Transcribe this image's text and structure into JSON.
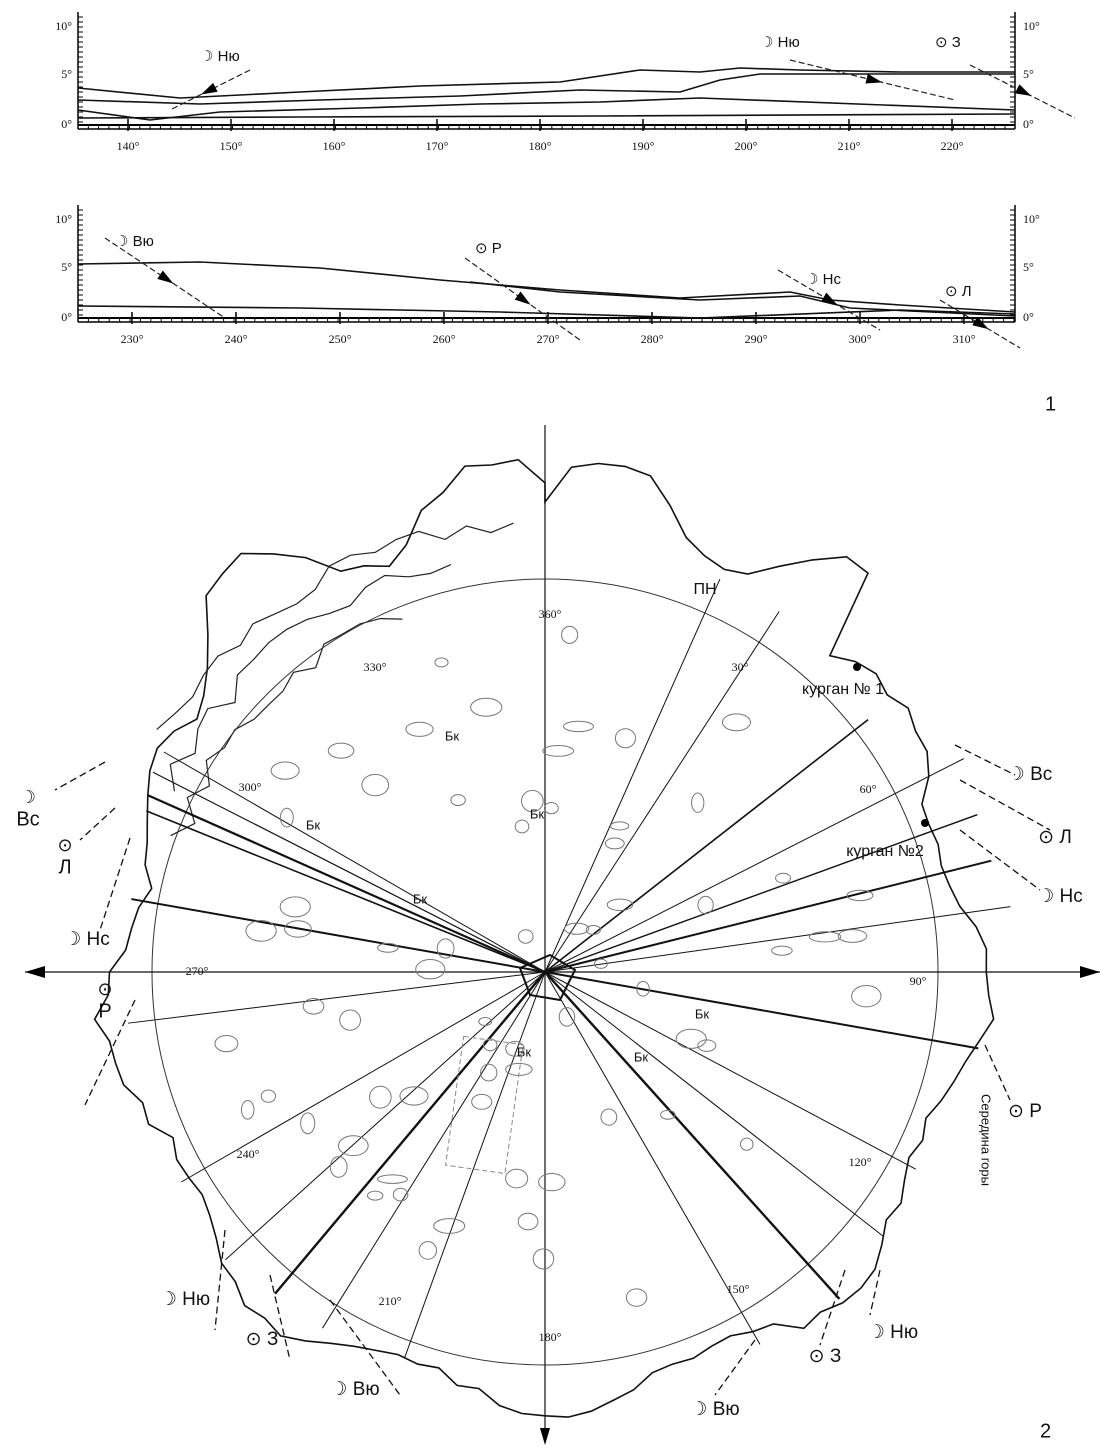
{
  "panel_labels": [
    "1",
    "2"
  ],
  "profiles": [
    {
      "y_left": [
        "10°",
        "5°",
        "0°"
      ],
      "y_right": [
        "10°",
        "5°",
        "0°"
      ],
      "x_labels": [
        "140°",
        "150°",
        "160°",
        "170°",
        "180°",
        "190°",
        "200°",
        "210°",
        "220°"
      ],
      "markers": [
        {
          "symbol": "☽",
          "name": "Ню"
        },
        {
          "symbol": "☽",
          "name": "Ню"
        },
        {
          "symbol": "⊙",
          "name": "З"
        }
      ]
    },
    {
      "y_left": [
        "10°",
        "5°",
        "0°"
      ],
      "y_right": [
        "10°",
        "5°",
        "0°"
      ],
      "x_labels": [
        "230°",
        "240°",
        "250°",
        "260°",
        "270°",
        "280°",
        "290°",
        "300°",
        "310°"
      ],
      "markers": [
        {
          "symbol": "☽",
          "name": "Вю"
        },
        {
          "symbol": "⊙",
          "name": "Р"
        },
        {
          "symbol": "☽",
          "name": "Нс"
        },
        {
          "symbol": "⊙",
          "name": "Л"
        }
      ]
    }
  ],
  "plan": {
    "azimuth_labels": [
      "360°",
      "30°",
      "60°",
      "90°",
      "120°",
      "150°",
      "180°",
      "210°",
      "240°",
      "270°",
      "300°",
      "330°"
    ],
    "labels": [
      "ПН",
      "курган № 1",
      "курган №2",
      "Середина горы"
    ],
    "stone_labels": [
      "Бк",
      "Бк",
      "Бк",
      "Бк",
      "Бк",
      "Бк",
      "Бк"
    ],
    "directions": [
      {
        "symbol": "☽",
        "name": "Вс"
      },
      {
        "symbol": "⊙",
        "name": "Л"
      },
      {
        "symbol": "☽",
        "name": "Нс"
      },
      {
        "symbol": "⊙",
        "name": "Р"
      },
      {
        "symbol": "☽",
        "name": "Ню"
      },
      {
        "symbol": "⊙",
        "name": "З"
      },
      {
        "symbol": "☽",
        "name": "Вю"
      },
      {
        "symbol": "☽",
        "name": "Вю"
      },
      {
        "symbol": "⊙",
        "name": "З"
      },
      {
        "symbol": "☽",
        "name": "Ню"
      },
      {
        "symbol": "☽",
        "name": "Нс"
      },
      {
        "symbol": "⊙",
        "name": "Р"
      },
      {
        "symbol": "⊙",
        "name": "Л"
      },
      {
        "symbol": "☽",
        "name": "Вс"
      }
    ]
  }
}
